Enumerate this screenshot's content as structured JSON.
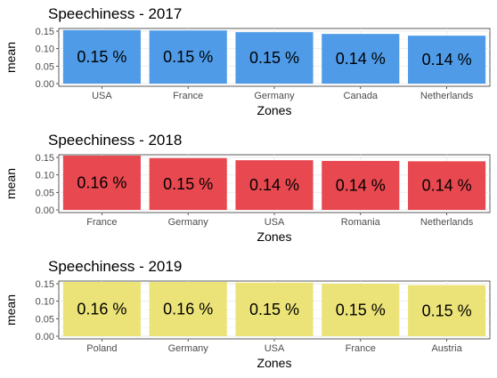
{
  "chart_data": [
    {
      "type": "bar",
      "title": "Speechiness - 2017",
      "xlabel": "Zones",
      "ylabel": "mean",
      "ylim": [
        0,
        0.15
      ],
      "yticks": [
        "0.00",
        "0.05",
        "0.10",
        "0.15"
      ],
      "color": "#4f9be8",
      "categories": [
        "USA",
        "France",
        "Germany",
        "Canada",
        "Netherlands"
      ],
      "values": [
        0.153,
        0.152,
        0.147,
        0.142,
        0.137
      ],
      "labels": [
        "0.15 %",
        "0.15 %",
        "0.15 %",
        "0.14 %",
        "0.14 %"
      ]
    },
    {
      "type": "bar",
      "title": "Speechiness - 2018",
      "xlabel": "Zones",
      "ylabel": "mean",
      "ylim": [
        0,
        0.15
      ],
      "yticks": [
        "0.00",
        "0.05",
        "0.10",
        "0.15"
      ],
      "color": "#e8484f",
      "categories": [
        "France",
        "Germany",
        "USA",
        "Romania",
        "Netherlands"
      ],
      "values": [
        0.162,
        0.148,
        0.142,
        0.14,
        0.139
      ],
      "labels": [
        "0.16 %",
        "0.15 %",
        "0.14 %",
        "0.14 %",
        "0.14 %"
      ]
    },
    {
      "type": "bar",
      "title": "Speechiness - 2019",
      "xlabel": "Zones",
      "ylabel": "mean",
      "ylim": [
        0,
        0.15
      ],
      "yticks": [
        "0.00",
        "0.05",
        "0.10",
        "0.15"
      ],
      "color": "#ece378",
      "categories": [
        "Poland",
        "Germany",
        "USA",
        "France",
        "Austria"
      ],
      "values": [
        0.162,
        0.156,
        0.153,
        0.15,
        0.146
      ],
      "labels": [
        "0.16 %",
        "0.16 %",
        "0.15 %",
        "0.15 %",
        "0.15 %"
      ]
    }
  ]
}
